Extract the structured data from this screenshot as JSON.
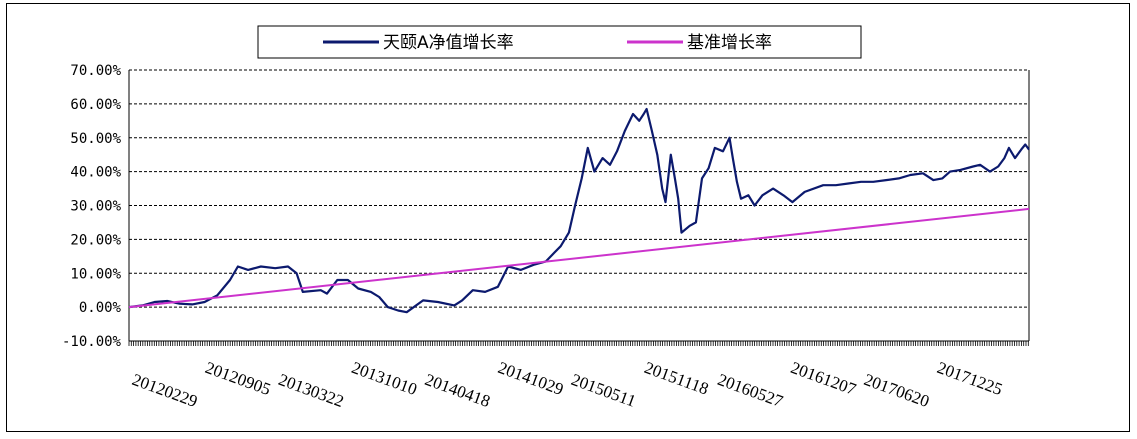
{
  "chart_data": {
    "type": "line",
    "title": "",
    "xlabel": "",
    "ylabel": "",
    "ylim": [
      -10,
      70
    ],
    "y_ticks": [
      -10,
      0,
      10,
      20,
      30,
      40,
      50,
      60,
      70
    ],
    "y_tick_labels": [
      "-10.00%",
      "0.00%",
      "10.00%",
      "20.00%",
      "30.00%",
      "40.00%",
      "50.00%",
      "60.00%",
      "70.00%"
    ],
    "x_start": "2011-12-30",
    "x_end": "2017-12-29",
    "x_tick_labels": [
      "20120229",
      "20120905",
      "20130322",
      "20131010",
      "20140418",
      "20141029",
      "20150511",
      "20151118",
      "20160527",
      "20161207",
      "20170620",
      "20171225"
    ],
    "grid": "horizontal dashed",
    "legend_position": "top",
    "series": [
      {
        "name": "天颐A净值增长率",
        "color": "#0c1a6e",
        "points": [
          [
            "2011-12-30",
            0.0
          ],
          [
            "2012-02-01",
            0.5
          ],
          [
            "2012-03-01",
            1.5
          ],
          [
            "2012-04-01",
            1.8
          ],
          [
            "2012-05-01",
            1.0
          ],
          [
            "2012-06-01",
            0.8
          ],
          [
            "2012-07-01",
            1.5
          ],
          [
            "2012-08-01",
            3.5
          ],
          [
            "2012-09-01",
            8.0
          ],
          [
            "2012-09-20",
            12.0
          ],
          [
            "2012-10-15",
            11.0
          ],
          [
            "2012-11-15",
            12.0
          ],
          [
            "2012-12-20",
            11.5
          ],
          [
            "2013-01-20",
            12.0
          ],
          [
            "2013-02-10",
            10.0
          ],
          [
            "2013-02-25",
            4.5
          ],
          [
            "2013-04-10",
            5.0
          ],
          [
            "2013-04-25",
            4.0
          ],
          [
            "2013-05-20",
            8.0
          ],
          [
            "2013-06-15",
            8.0
          ],
          [
            "2013-07-10",
            5.5
          ],
          [
            "2013-08-10",
            4.5
          ],
          [
            "2013-08-30",
            3.0
          ],
          [
            "2013-09-20",
            0.0
          ],
          [
            "2013-10-15",
            -1.0
          ],
          [
            "2013-11-05",
            -1.5
          ],
          [
            "2013-12-15",
            2.0
          ],
          [
            "2014-01-20",
            1.5
          ],
          [
            "2014-03-01",
            0.5
          ],
          [
            "2014-03-20",
            2.0
          ],
          [
            "2014-04-15",
            5.0
          ],
          [
            "2014-05-15",
            4.5
          ],
          [
            "2014-06-15",
            6.0
          ],
          [
            "2014-07-10",
            12.0
          ],
          [
            "2014-08-10",
            11.0
          ],
          [
            "2014-09-10",
            12.5
          ],
          [
            "2014-10-10",
            13.5
          ],
          [
            "2014-10-30",
            16.0
          ],
          [
            "2014-11-15",
            18.0
          ],
          [
            "2014-12-05",
            22.0
          ],
          [
            "2014-12-20",
            30.0
          ],
          [
            "2015-01-05",
            38.0
          ],
          [
            "2015-01-20",
            47.0
          ],
          [
            "2015-02-05",
            40.0
          ],
          [
            "2015-02-25",
            44.0
          ],
          [
            "2015-03-15",
            42.0
          ],
          [
            "2015-04-01",
            46.0
          ],
          [
            "2015-04-20",
            52.0
          ],
          [
            "2015-05-10",
            57.0
          ],
          [
            "2015-05-25",
            55.0
          ],
          [
            "2015-06-05",
            57.0
          ],
          [
            "2015-06-12",
            58.5
          ],
          [
            "2015-06-25",
            52.0
          ],
          [
            "2015-07-08",
            45.0
          ],
          [
            "2015-07-20",
            35.0
          ],
          [
            "2015-07-28",
            31.0
          ],
          [
            "2015-08-10",
            45.0
          ],
          [
            "2015-08-20",
            38.0
          ],
          [
            "2015-08-28",
            32.0
          ],
          [
            "2015-09-05",
            22.0
          ],
          [
            "2015-09-25",
            24.0
          ],
          [
            "2015-10-10",
            25.0
          ],
          [
            "2015-10-25",
            38.0
          ],
          [
            "2015-11-10",
            41.0
          ],
          [
            "2015-11-25",
            47.0
          ],
          [
            "2015-12-15",
            46.0
          ],
          [
            "2015-12-31",
            50.0
          ],
          [
            "2016-01-08",
            44.0
          ],
          [
            "2016-01-18",
            37.0
          ],
          [
            "2016-01-28",
            32.0
          ],
          [
            "2016-02-15",
            33.0
          ],
          [
            "2016-03-01",
            30.0
          ],
          [
            "2016-03-20",
            33.0
          ],
          [
            "2016-04-15",
            35.0
          ],
          [
            "2016-05-10",
            33.0
          ],
          [
            "2016-06-01",
            31.0
          ],
          [
            "2016-07-01",
            34.0
          ],
          [
            "2016-08-15",
            36.0
          ],
          [
            "2016-09-15",
            36.0
          ],
          [
            "2016-10-15",
            36.5
          ],
          [
            "2016-11-15",
            37.0
          ],
          [
            "2016-12-15",
            37.0
          ],
          [
            "2017-01-15",
            37.5
          ],
          [
            "2017-02-15",
            38.0
          ],
          [
            "2017-03-15",
            39.0
          ],
          [
            "2017-04-15",
            39.5
          ],
          [
            "2017-05-10",
            37.5
          ],
          [
            "2017-06-01",
            38.0
          ],
          [
            "2017-06-20",
            40.0
          ],
          [
            "2017-07-15",
            40.5
          ],
          [
            "2017-08-15",
            41.5
          ],
          [
            "2017-09-01",
            42.0
          ],
          [
            "2017-09-25",
            40.0
          ],
          [
            "2017-10-15",
            41.5
          ],
          [
            "2017-10-30",
            44.0
          ],
          [
            "2017-11-10",
            47.0
          ],
          [
            "2017-11-25",
            44.0
          ],
          [
            "2017-12-10",
            46.5
          ],
          [
            "2017-12-20",
            48.0
          ],
          [
            "2017-12-29",
            46.5
          ]
        ]
      },
      {
        "name": "基准增长率",
        "color": "#cc33cc",
        "points": [
          [
            "2011-12-30",
            0.0
          ],
          [
            "2017-12-29",
            29.0
          ]
        ]
      }
    ]
  }
}
